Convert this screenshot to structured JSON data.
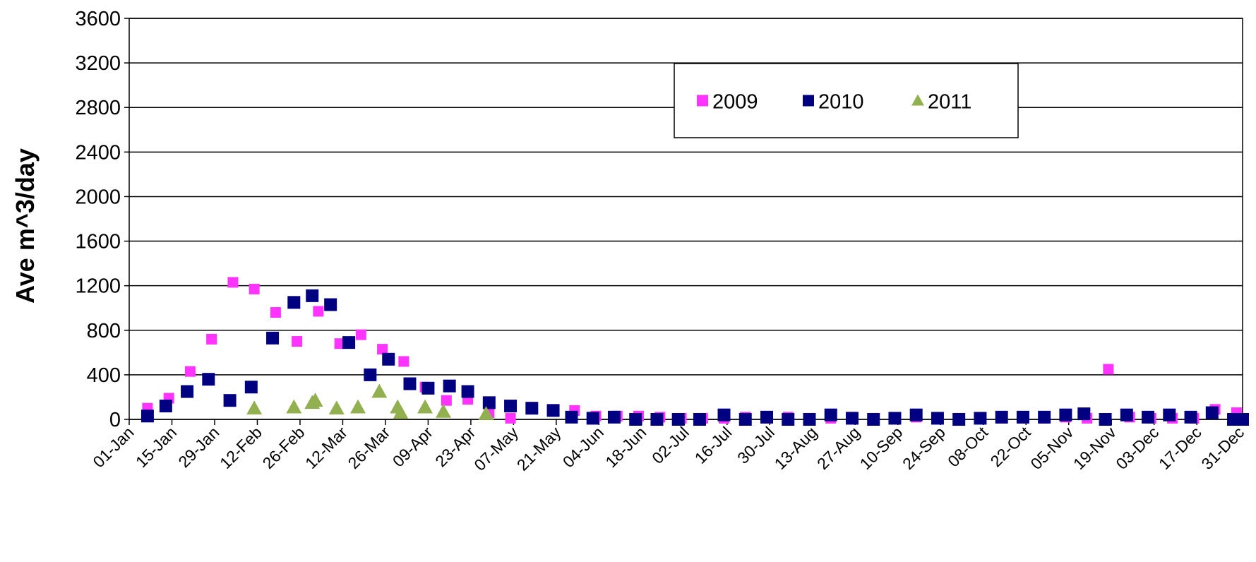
{
  "chart_data": {
    "type": "scatter",
    "title": "",
    "xlabel": "",
    "ylabel": "Ave m^3/day",
    "ylim": [
      0,
      3600
    ],
    "yticks": [
      0,
      400,
      800,
      1200,
      1600,
      2000,
      2400,
      2800,
      3200,
      3600
    ],
    "xlim": [
      1,
      366
    ],
    "xticks": [
      {
        "day": 1,
        "label": "01-Jan"
      },
      {
        "day": 15,
        "label": "15-Jan"
      },
      {
        "day": 29,
        "label": "29-Jan"
      },
      {
        "day": 43,
        "label": "12-Feb"
      },
      {
        "day": 57,
        "label": "26-Feb"
      },
      {
        "day": 71,
        "label": "12-Mar"
      },
      {
        "day": 85,
        "label": "26-Mar"
      },
      {
        "day": 99,
        "label": "09-Apr"
      },
      {
        "day": 113,
        "label": "23-Apr"
      },
      {
        "day": 127,
        "label": "07-May"
      },
      {
        "day": 141,
        "label": "21-May"
      },
      {
        "day": 155,
        "label": "04-Jun"
      },
      {
        "day": 169,
        "label": "18-Jun"
      },
      {
        "day": 183,
        "label": "02-Jul"
      },
      {
        "day": 197,
        "label": "16-Jul"
      },
      {
        "day": 211,
        "label": "30-Jul"
      },
      {
        "day": 225,
        "label": "13-Aug"
      },
      {
        "day": 239,
        "label": "27-Aug"
      },
      {
        "day": 253,
        "label": "10-Sep"
      },
      {
        "day": 267,
        "label": "24-Sep"
      },
      {
        "day": 281,
        "label": "08-Oct"
      },
      {
        "day": 295,
        "label": "22-Oct"
      },
      {
        "day": 309,
        "label": "05-Nov"
      },
      {
        "day": 323,
        "label": "19-Nov"
      },
      {
        "day": 337,
        "label": "03-Dec"
      },
      {
        "day": 351,
        "label": "17-Dec"
      },
      {
        "day": 365,
        "label": "31-Dec"
      }
    ],
    "grid": true,
    "legend_position": "top-center",
    "series": [
      {
        "name": "2009",
        "color": "#ff33ff",
        "marker": "square",
        "points": [
          [
            7,
            100
          ],
          [
            14,
            190
          ],
          [
            21,
            430
          ],
          [
            28,
            720
          ],
          [
            35,
            1230
          ],
          [
            42,
            1170
          ],
          [
            49,
            960
          ],
          [
            56,
            700
          ],
          [
            63,
            970
          ],
          [
            70,
            680
          ],
          [
            77,
            760
          ],
          [
            84,
            630
          ],
          [
            91,
            520
          ],
          [
            98,
            290
          ],
          [
            105,
            170
          ],
          [
            112,
            180
          ],
          [
            119,
            60
          ],
          [
            126,
            10
          ],
          [
            133,
            110
          ],
          [
            140,
            90
          ],
          [
            147,
            80
          ],
          [
            154,
            30
          ],
          [
            161,
            30
          ],
          [
            168,
            30
          ],
          [
            175,
            20
          ],
          [
            182,
            10
          ],
          [
            189,
            10
          ],
          [
            196,
            10
          ],
          [
            203,
            20
          ],
          [
            210,
            10
          ],
          [
            217,
            20
          ],
          [
            224,
            10
          ],
          [
            231,
            10
          ],
          [
            238,
            20
          ],
          [
            245,
            10
          ],
          [
            252,
            10
          ],
          [
            259,
            20
          ],
          [
            266,
            10
          ],
          [
            273,
            10
          ],
          [
            280,
            10
          ],
          [
            287,
            10
          ],
          [
            294,
            10
          ],
          [
            301,
            10
          ],
          [
            308,
            20
          ],
          [
            315,
            10
          ],
          [
            322,
            450
          ],
          [
            329,
            20
          ],
          [
            336,
            10
          ],
          [
            343,
            10
          ],
          [
            350,
            10
          ],
          [
            357,
            90
          ],
          [
            364,
            60
          ]
        ]
      },
      {
        "name": "2010",
        "color": "#000080",
        "marker": "square",
        "points": [
          [
            7,
            30
          ],
          [
            13,
            120
          ],
          [
            20,
            250
          ],
          [
            27,
            360
          ],
          [
            34,
            170
          ],
          [
            41,
            290
          ],
          [
            48,
            730
          ],
          [
            55,
            1050
          ],
          [
            61,
            1110
          ],
          [
            67,
            1030
          ],
          [
            73,
            690
          ],
          [
            80,
            400
          ],
          [
            86,
            540
          ],
          [
            93,
            320
          ],
          [
            99,
            280
          ],
          [
            106,
            300
          ],
          [
            112,
            250
          ],
          [
            119,
            150
          ],
          [
            126,
            120
          ],
          [
            133,
            100
          ],
          [
            140,
            80
          ],
          [
            146,
            20
          ],
          [
            153,
            10
          ],
          [
            160,
            20
          ],
          [
            167,
            0
          ],
          [
            174,
            0
          ],
          [
            181,
            0
          ],
          [
            188,
            0
          ],
          [
            196,
            40
          ],
          [
            203,
            0
          ],
          [
            210,
            20
          ],
          [
            217,
            0
          ],
          [
            224,
            0
          ],
          [
            231,
            40
          ],
          [
            238,
            10
          ],
          [
            245,
            0
          ],
          [
            252,
            10
          ],
          [
            259,
            40
          ],
          [
            266,
            10
          ],
          [
            273,
            0
          ],
          [
            280,
            10
          ],
          [
            287,
            20
          ],
          [
            294,
            20
          ],
          [
            301,
            20
          ],
          [
            308,
            40
          ],
          [
            314,
            50
          ],
          [
            321,
            0
          ],
          [
            328,
            40
          ],
          [
            335,
            20
          ],
          [
            342,
            40
          ],
          [
            349,
            20
          ],
          [
            356,
            60
          ],
          [
            363,
            0
          ],
          [
            370,
            0
          ]
        ]
      },
      {
        "name": "2011",
        "color": "#92b050",
        "marker": "triangle",
        "points": [
          [
            42,
            100
          ],
          [
            55,
            110
          ],
          [
            61,
            150
          ],
          [
            62,
            170
          ],
          [
            69,
            100
          ],
          [
            76,
            110
          ],
          [
            83,
            250
          ],
          [
            89,
            110
          ],
          [
            90,
            60
          ],
          [
            98,
            110
          ],
          [
            104,
            70
          ],
          [
            118,
            50
          ]
        ]
      }
    ]
  }
}
